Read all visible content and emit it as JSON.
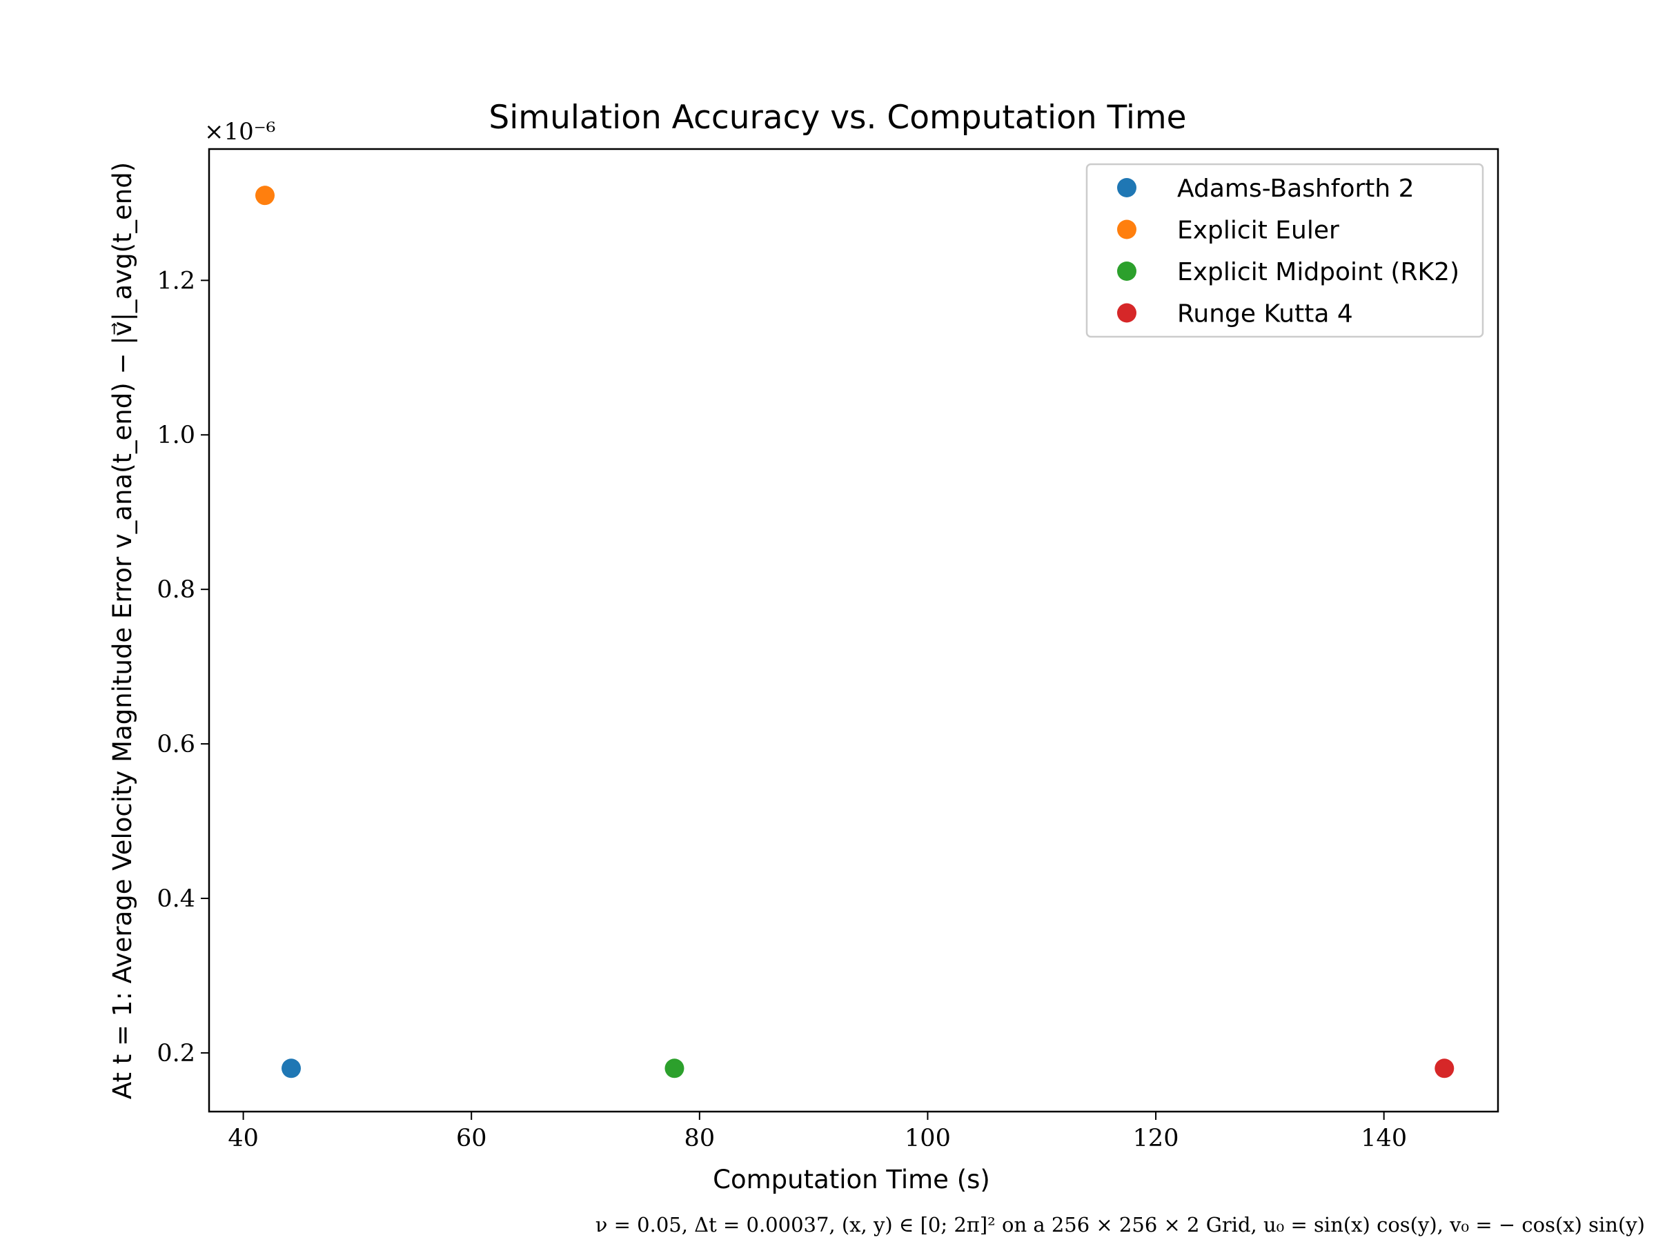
{
  "chart_data": {
    "type": "scatter",
    "title": "Simulation Accuracy vs. Computation Time",
    "xlabel": "Computation Time (s)",
    "ylabel": "At t = 1: Average Velocity Magnitude Error v_ana(t_end) − |v⃗|_avg(t_end)",
    "y_offset_label": "×10⁻⁶",
    "xlim": [
      37,
      150
    ],
    "ylim": [
      0.124,
      1.37
    ],
    "x_ticks": [
      40,
      60,
      80,
      100,
      120,
      140
    ],
    "y_ticks": [
      0.2,
      0.4,
      0.6,
      0.8,
      1.0,
      1.2
    ],
    "y_tick_labels": [
      "0.2",
      "0.4",
      "0.6",
      "0.8",
      "1.0",
      "1.2"
    ],
    "grid": false,
    "legend_position": "top-right",
    "series": [
      {
        "name": "Adams-Bashforth 2",
        "color": "#1f77b4",
        "x": [
          44.2
        ],
        "y": [
          0.18
        ]
      },
      {
        "name": "Explicit Euler",
        "color": "#ff7f0e",
        "x": [
          41.9
        ],
        "y": [
          1.31
        ]
      },
      {
        "name": "Explicit Midpoint (RK2)",
        "color": "#2ca02c",
        "x": [
          77.8
        ],
        "y": [
          0.18
        ]
      },
      {
        "name": "Runge Kutta 4",
        "color": "#d62728",
        "x": [
          145.3
        ],
        "y": [
          0.18
        ]
      }
    ],
    "footnote": "ν = 0.05, Δt = 0.00037, (x, y) ∈ [0; 2π]² on a 256 × 256 × 2 Grid, u₀ = sin(x) cos(y), v₀ = − cos(x) sin(y)"
  }
}
